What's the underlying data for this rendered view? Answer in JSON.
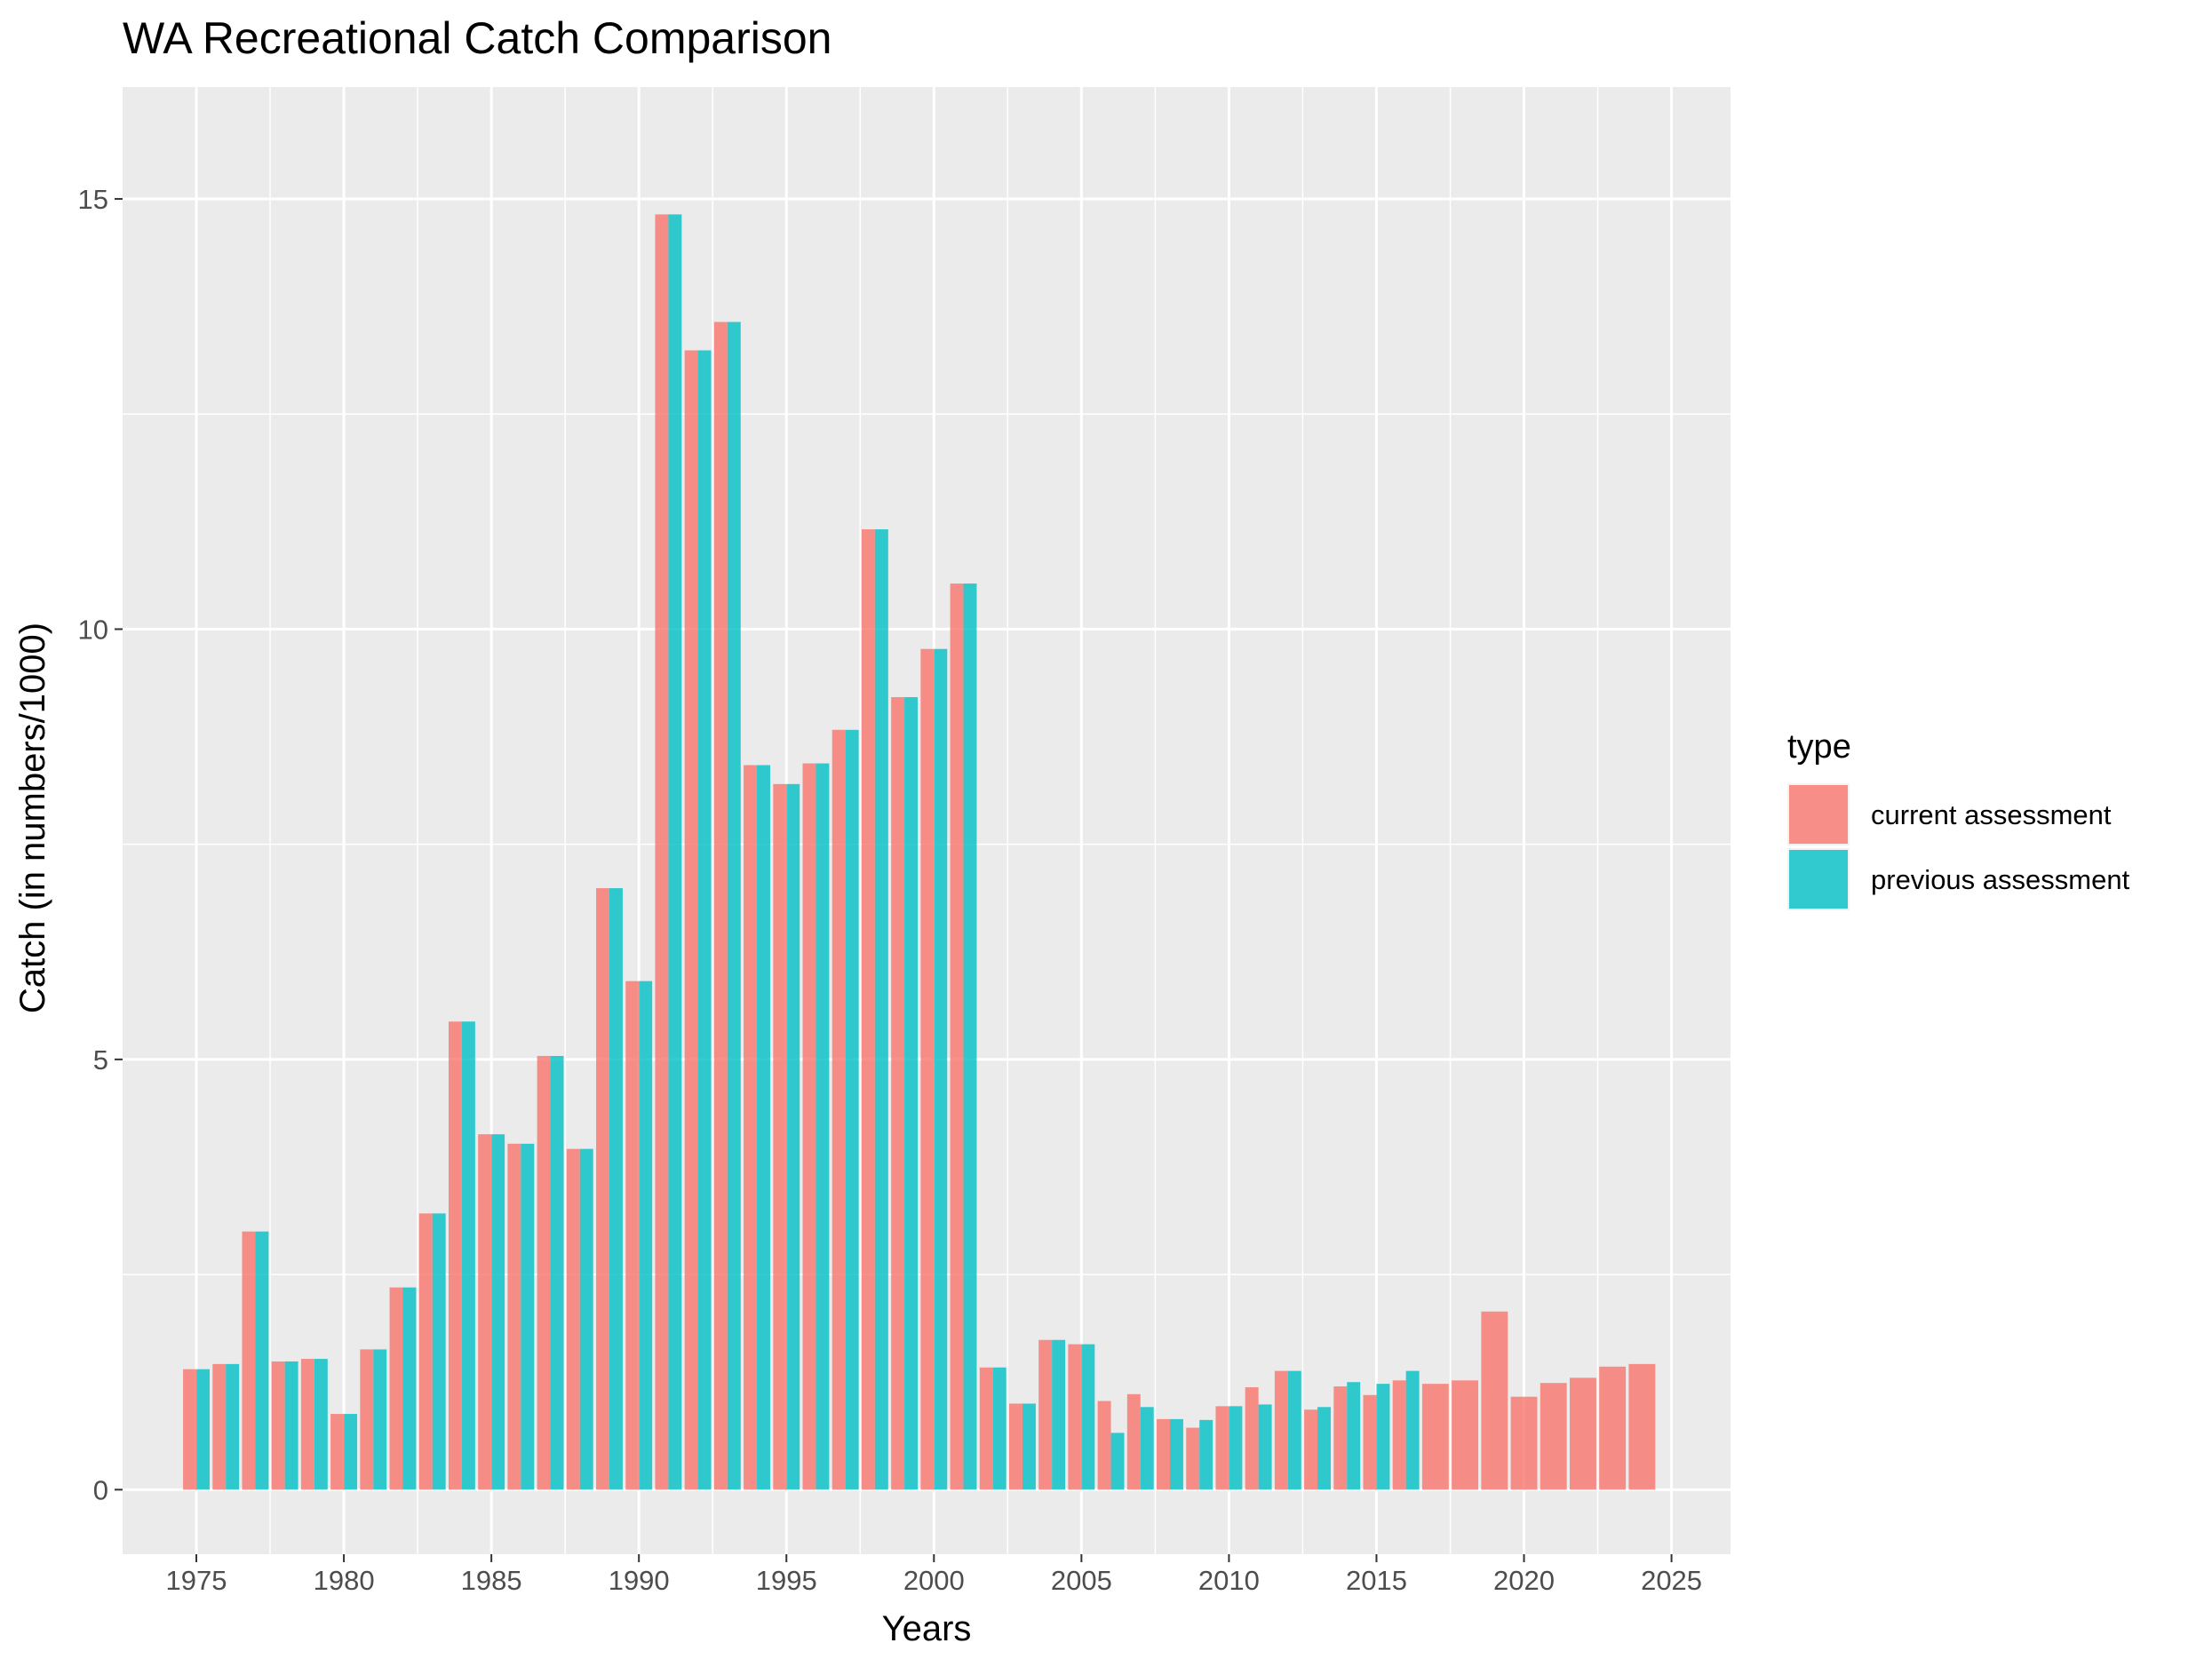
{
  "chart_data": {
    "type": "bar",
    "title": "WA Recreational Catch Comparison",
    "xlabel": "Years",
    "ylabel": "Catch (in numbers/1000)",
    "xlim": [
      1972.5,
      2027
    ],
    "ylim": [
      -0.75,
      16.3
    ],
    "x_ticks": [
      1975,
      1980,
      1985,
      1990,
      1995,
      2000,
      2005,
      2010,
      2015,
      2020,
      2025
    ],
    "y_ticks": [
      0,
      5,
      10,
      15
    ],
    "grid": true,
    "background_color": "#ebebeb",
    "legend": {
      "title": "type",
      "position": "right"
    },
    "series": [
      {
        "name": "current assessment",
        "color": "#f8766d",
        "points": [
          {
            "x": 1975,
            "y": 1.4
          },
          {
            "x": 1976,
            "y": 1.46
          },
          {
            "x": 1977,
            "y": 3.0
          },
          {
            "x": 1978,
            "y": 1.49
          },
          {
            "x": 1979,
            "y": 1.52
          },
          {
            "x": 1980,
            "y": 0.88
          },
          {
            "x": 1981,
            "y": 1.63
          },
          {
            "x": 1982,
            "y": 2.35
          },
          {
            "x": 1983,
            "y": 3.21
          },
          {
            "x": 1984,
            "y": 5.44
          },
          {
            "x": 1985,
            "y": 4.13
          },
          {
            "x": 1986,
            "y": 4.02
          },
          {
            "x": 1987,
            "y": 5.04
          },
          {
            "x": 1988,
            "y": 3.96
          },
          {
            "x": 1989,
            "y": 6.99
          },
          {
            "x": 1990,
            "y": 5.91
          },
          {
            "x": 1991,
            "y": 14.82
          },
          {
            "x": 1992,
            "y": 13.24
          },
          {
            "x": 1993,
            "y": 13.57
          },
          {
            "x": 1994,
            "y": 8.42
          },
          {
            "x": 1995,
            "y": 8.2
          },
          {
            "x": 1996,
            "y": 8.44
          },
          {
            "x": 1997,
            "y": 8.83
          },
          {
            "x": 1998,
            "y": 11.16
          },
          {
            "x": 1999,
            "y": 9.21
          },
          {
            "x": 2000,
            "y": 9.77
          },
          {
            "x": 2001,
            "y": 10.53
          },
          {
            "x": 2002,
            "y": 1.42
          },
          {
            "x": 2003,
            "y": 1.0
          },
          {
            "x": 2004,
            "y": 1.74
          },
          {
            "x": 2005,
            "y": 1.69
          },
          {
            "x": 2006,
            "y": 1.03
          },
          {
            "x": 2007,
            "y": 1.11
          },
          {
            "x": 2008,
            "y": 0.82
          },
          {
            "x": 2009,
            "y": 0.72
          },
          {
            "x": 2010,
            "y": 0.97
          },
          {
            "x": 2011,
            "y": 1.19
          },
          {
            "x": 2012,
            "y": 1.38
          },
          {
            "x": 2013,
            "y": 0.93
          },
          {
            "x": 2014,
            "y": 1.2
          },
          {
            "x": 2015,
            "y": 1.1
          },
          {
            "x": 2016,
            "y": 1.27
          },
          {
            "x": 2017,
            "y": 1.23
          },
          {
            "x": 2018,
            "y": 1.27
          },
          {
            "x": 2019,
            "y": 2.07
          },
          {
            "x": 2020,
            "y": 1.08
          },
          {
            "x": 2021,
            "y": 1.24
          },
          {
            "x": 2022,
            "y": 1.3
          },
          {
            "x": 2023,
            "y": 1.43
          },
          {
            "x": 2024,
            "y": 1.46
          }
        ]
      },
      {
        "name": "previous assessment",
        "color": "#00bfc4",
        "points": [
          {
            "x": 1975,
            "y": 1.4
          },
          {
            "x": 1976,
            "y": 1.46
          },
          {
            "x": 1977,
            "y": 3.0
          },
          {
            "x": 1978,
            "y": 1.49
          },
          {
            "x": 1979,
            "y": 1.52
          },
          {
            "x": 1980,
            "y": 0.88
          },
          {
            "x": 1981,
            "y": 1.63
          },
          {
            "x": 1982,
            "y": 2.35
          },
          {
            "x": 1983,
            "y": 3.21
          },
          {
            "x": 1984,
            "y": 5.44
          },
          {
            "x": 1985,
            "y": 4.13
          },
          {
            "x": 1986,
            "y": 4.02
          },
          {
            "x": 1987,
            "y": 5.04
          },
          {
            "x": 1988,
            "y": 3.96
          },
          {
            "x": 1989,
            "y": 6.99
          },
          {
            "x": 1990,
            "y": 5.91
          },
          {
            "x": 1991,
            "y": 14.82
          },
          {
            "x": 1992,
            "y": 13.24
          },
          {
            "x": 1993,
            "y": 13.57
          },
          {
            "x": 1994,
            "y": 8.42
          },
          {
            "x": 1995,
            "y": 8.2
          },
          {
            "x": 1996,
            "y": 8.44
          },
          {
            "x": 1997,
            "y": 8.83
          },
          {
            "x": 1998,
            "y": 11.16
          },
          {
            "x": 1999,
            "y": 9.21
          },
          {
            "x": 2000,
            "y": 9.77
          },
          {
            "x": 2001,
            "y": 10.53
          },
          {
            "x": 2002,
            "y": 1.42
          },
          {
            "x": 2003,
            "y": 1.0
          },
          {
            "x": 2004,
            "y": 1.74
          },
          {
            "x": 2005,
            "y": 1.69
          },
          {
            "x": 2006,
            "y": 0.66
          },
          {
            "x": 2007,
            "y": 0.96
          },
          {
            "x": 2008,
            "y": 0.82
          },
          {
            "x": 2009,
            "y": 0.81
          },
          {
            "x": 2010,
            "y": 0.97
          },
          {
            "x": 2011,
            "y": 0.99
          },
          {
            "x": 2012,
            "y": 1.38
          },
          {
            "x": 2013,
            "y": 0.96
          },
          {
            "x": 2014,
            "y": 1.25
          },
          {
            "x": 2015,
            "y": 1.23
          },
          {
            "x": 2016,
            "y": 1.38
          }
        ]
      }
    ]
  }
}
